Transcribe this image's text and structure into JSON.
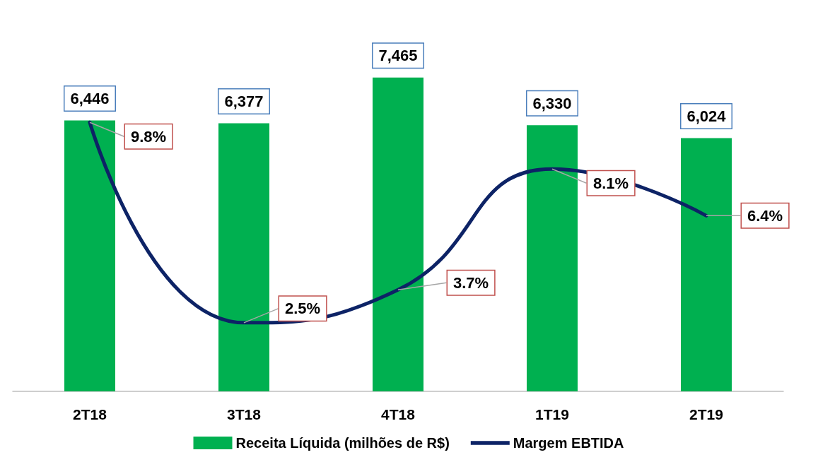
{
  "chart_data": {
    "type": "bar",
    "categories": [
      "2T18",
      "3T18",
      "4T18",
      "1T19",
      "2T19"
    ],
    "series": [
      {
        "name": "Receita Líquida (milhões de R$)",
        "color": "#00b050",
        "values": [
          6446,
          6377,
          7465,
          6330,
          6024
        ],
        "value_labels": [
          "6,446",
          "6,377",
          "7,465",
          "6,330",
          "6,024"
        ]
      },
      {
        "name": "Margem EBTIDA",
        "type": "line",
        "axis": "y2",
        "color": "#0d2366",
        "values": [
          9.8,
          2.5,
          3.7,
          8.1,
          6.4
        ],
        "value_labels": [
          "9.8%",
          "2.5%",
          "3.7%",
          "8.1%",
          "6.4%"
        ]
      }
    ],
    "grid": false,
    "legend": "bottom",
    "marker": "none",
    "line_style": "solid"
  }
}
